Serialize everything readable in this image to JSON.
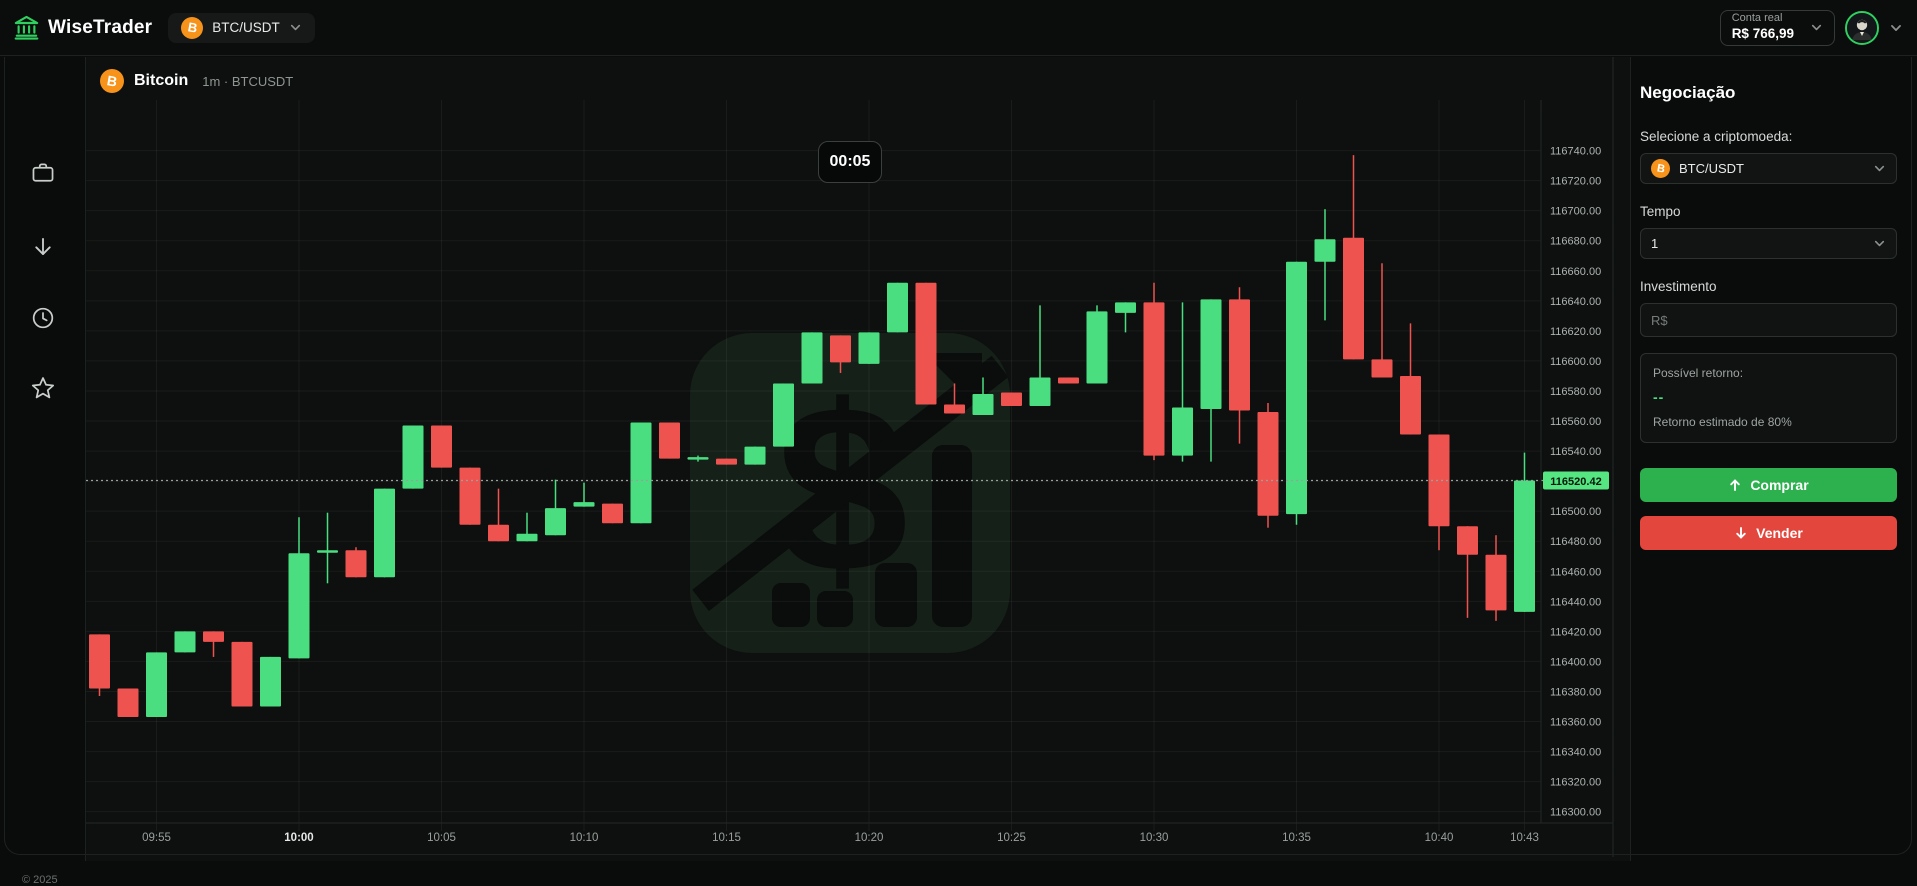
{
  "colors": {
    "up": "#4ade80",
    "down": "#ef5350",
    "buy_button": "#2db14e",
    "sell_button": "#e2463d",
    "badge_bg": "#55e581",
    "badge_text": "#05180b",
    "grid": "rgba(255,255,255,0.05)",
    "border": "#222725",
    "dotted": "#98a29c",
    "brand_green": "#2fd05f",
    "bitcoin_orange": "#f7931a"
  },
  "topbar": {
    "brand": "WiseTrader",
    "pair": "BTC/USDT",
    "account_label": "Conta real",
    "balance": "R$ 766,99"
  },
  "sidebar": {
    "icons": [
      "briefcase",
      "arrow-down",
      "clock",
      "star"
    ],
    "footer": "© 2025"
  },
  "chart": {
    "name": "Bitcoin",
    "meta": "1m · BTCUSDT",
    "timer": "00:05"
  },
  "chart_data": {
    "type": "candlestick",
    "title": "Bitcoin 1m BTCUSDT",
    "interval": "1m",
    "current_price": 116520.42,
    "current_price_label": "116520.42",
    "y_min": 116300,
    "y_max": 116740,
    "y_step": 20,
    "y_ticks": [
      "116740.00",
      "116720.00",
      "116700.00",
      "116680.00",
      "116660.00",
      "116640.00",
      "116620.00",
      "116600.00",
      "116580.00",
      "116560.00",
      "116540.00",
      "116500.00",
      "116480.00",
      "116460.00",
      "116440.00",
      "116420.00",
      "116400.00",
      "116380.00",
      "116360.00",
      "116340.00",
      "116320.00",
      "116300.00"
    ],
    "x_ticks": [
      {
        "label": "09:55",
        "idx": 2,
        "bold": false
      },
      {
        "label": "10:00",
        "idx": 7,
        "bold": true
      },
      {
        "label": "10:05",
        "idx": 12,
        "bold": false
      },
      {
        "label": "10:10",
        "idx": 17,
        "bold": false
      },
      {
        "label": "10:15",
        "idx": 22,
        "bold": false
      },
      {
        "label": "10:20",
        "idx": 27,
        "bold": false
      },
      {
        "label": "10:25",
        "idx": 32,
        "bold": false
      },
      {
        "label": "10:30",
        "idx": 37,
        "bold": false
      },
      {
        "label": "10:35",
        "idx": 42,
        "bold": false
      },
      {
        "label": "10:40",
        "idx": 47,
        "bold": false
      },
      {
        "label": "10:43",
        "idx": 50,
        "bold": false
      }
    ],
    "candles": [
      [
        "09:53",
        116418,
        116418,
        116377,
        116382
      ],
      [
        "09:54",
        116382,
        116382,
        116363,
        116363
      ],
      [
        "09:55",
        116363,
        116406,
        116363,
        116406
      ],
      [
        "09:56",
        116406,
        116420,
        116406,
        116420
      ],
      [
        "09:57",
        116420,
        116420,
        116403,
        116413
      ],
      [
        "09:58",
        116413,
        116413,
        116370,
        116370
      ],
      [
        "09:59",
        116370,
        116403,
        116370,
        116403
      ],
      [
        "10:00",
        116402,
        116496,
        116402,
        116472
      ],
      [
        "10:01",
        116473,
        116499,
        116452,
        116474
      ],
      [
        "10:02",
        116474,
        116476,
        116456,
        116456
      ],
      [
        "10:03",
        116456,
        116515,
        116456,
        116515
      ],
      [
        "10:04",
        116515,
        116557,
        116515,
        116557
      ],
      [
        "10:05",
        116557,
        116557,
        116529,
        116529
      ],
      [
        "10:06",
        116529,
        116529,
        116491,
        116491
      ],
      [
        "10:07",
        116491,
        116515,
        116480,
        116480
      ],
      [
        "10:08",
        116480,
        116499,
        116480,
        116485
      ],
      [
        "10:09",
        116484,
        116521,
        116484,
        116502
      ],
      [
        "10:10",
        116503,
        116519,
        116503,
        116506
      ],
      [
        "10:11",
        116505,
        116505,
        116492,
        116492
      ],
      [
        "10:12",
        116492,
        116559,
        116492,
        116559
      ],
      [
        "10:13",
        116559,
        116559,
        116535,
        116535
      ],
      [
        "10:14",
        116535,
        116537,
        116533,
        116536
      ],
      [
        "10:15",
        116535,
        116535,
        116531,
        116531
      ],
      [
        "10:16",
        116531,
        116543,
        116531,
        116543
      ],
      [
        "10:17",
        116543,
        116585,
        116543,
        116585
      ],
      [
        "10:18",
        116585,
        116619,
        116585,
        116619
      ],
      [
        "10:19",
        116617,
        116617,
        116592,
        116599
      ],
      [
        "10:20",
        116598,
        116619,
        116598,
        116619
      ],
      [
        "10:21",
        116619,
        116652,
        116619,
        116652
      ],
      [
        "10:22",
        116652,
        116652,
        116571,
        116571
      ],
      [
        "10:23",
        116571,
        116585,
        116565,
        116565
      ],
      [
        "10:24",
        116564,
        116589,
        116564,
        116578
      ],
      [
        "10:25",
        116579,
        116579,
        116570,
        116570
      ],
      [
        "10:26",
        116570,
        116637,
        116570,
        116589
      ],
      [
        "10:27",
        116589,
        116589,
        116585,
        116585
      ],
      [
        "10:28",
        116585,
        116637,
        116585,
        116633
      ],
      [
        "10:29",
        116632,
        116639,
        116619,
        116639
      ],
      [
        "10:30",
        116639,
        116652,
        116534,
        116537
      ],
      [
        "10:31",
        116537,
        116639,
        116533,
        116569
      ],
      [
        "10:32",
        116568,
        116641,
        116533,
        116641
      ],
      [
        "10:33",
        116641,
        116649,
        116545,
        116567
      ],
      [
        "10:34",
        116566,
        116572,
        116489,
        116497
      ],
      [
        "10:35",
        116498,
        116666,
        116491,
        116666
      ],
      [
        "10:36",
        116666,
        116701,
        116627,
        116681
      ],
      [
        "10:37",
        116682,
        116737,
        116601,
        116601
      ],
      [
        "10:38",
        116601,
        116665,
        116589,
        116589
      ],
      [
        "10:39",
        116590,
        116625,
        116551,
        116551
      ],
      [
        "10:40",
        116551,
        116551,
        116474,
        116490
      ],
      [
        "10:41",
        116490,
        116490,
        116429,
        116471
      ],
      [
        "10:42",
        116471,
        116484,
        116427,
        116434
      ],
      [
        "10:43",
        116433,
        116539,
        116433,
        116520.42
      ]
    ]
  },
  "trade_panel": {
    "title": "Negociação",
    "crypto_label": "Selecione a criptomoeda:",
    "crypto_value": "BTC/USDT",
    "time_label": "Tempo",
    "time_value": "1",
    "investment_label": "Investimento",
    "investment_placeholder": "R$",
    "return_label": "Possível retorno:",
    "return_value": "--",
    "return_note": "Retorno estimado de 80%",
    "buy_label": "Comprar",
    "sell_label": "Vender"
  }
}
